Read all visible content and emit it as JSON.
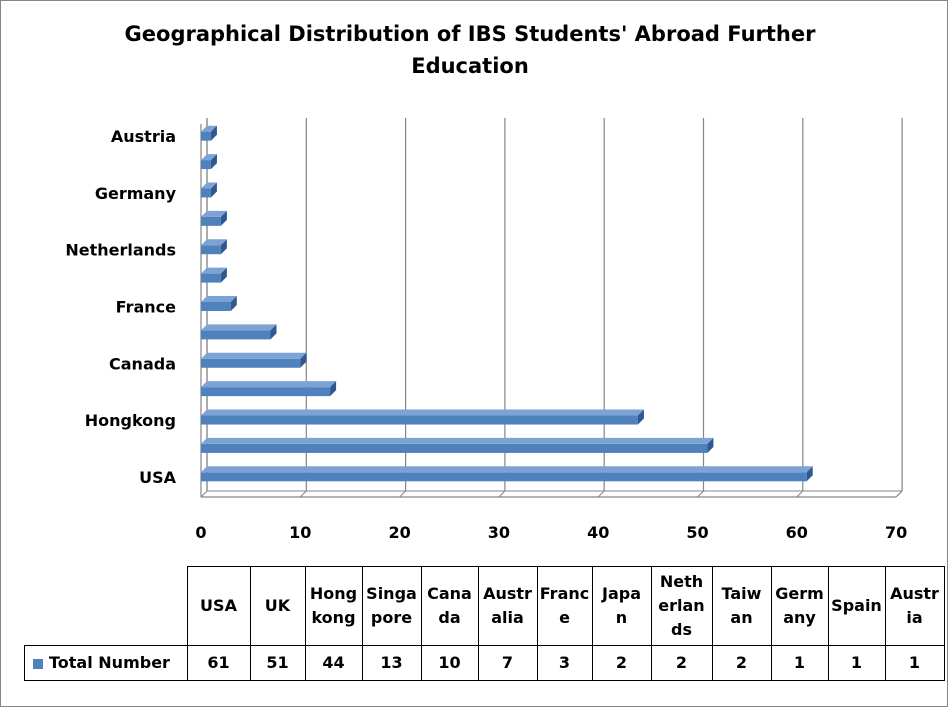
{
  "chart_data": {
    "type": "bar",
    "orientation": "horizontal",
    "style": "3d",
    "title": "Geographical Distribution of IBS Students' Abroad Further Education",
    "categories": [
      "USA",
      "UK",
      "Hongkong",
      "Singapore",
      "Canada",
      "Australia",
      "France",
      "Japan",
      "Netherlands",
      "Taiwan",
      "Germany",
      "Spain",
      "Austria"
    ],
    "visible_axis_labels": [
      "USA",
      "Hongkong",
      "Canada",
      "France",
      "Netherlands",
      "Germany",
      "Austria"
    ],
    "series": [
      {
        "name": "Total Number",
        "values": [
          61,
          51,
          44,
          13,
          10,
          7,
          3,
          2,
          2,
          2,
          1,
          1,
          1
        ],
        "color": "#4f81bd"
      }
    ],
    "xlim": [
      0,
      70
    ],
    "xticks": [
      "0",
      "10",
      "20",
      "30",
      "40",
      "50",
      "60",
      "70"
    ],
    "grid": true,
    "data_table": {
      "header_labels": [
        "USA",
        "UK",
        "Hong kong",
        "Singa pore",
        "Cana da",
        "Austr alia",
        "Franc e",
        "Japa n",
        "Neth erlan ds",
        "Taiw an",
        "Germ any",
        "Spain",
        "Austr ia"
      ],
      "series_label": "Total Number",
      "values": [
        "61",
        "51",
        "44",
        "13",
        "10",
        "7",
        "3",
        "2",
        "2",
        "2",
        "1",
        "1",
        "1"
      ]
    }
  }
}
